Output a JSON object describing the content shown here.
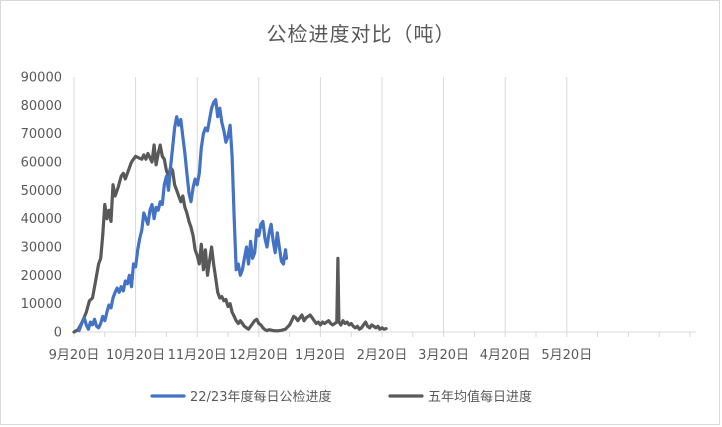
{
  "chart_data": {
    "type": "line",
    "title": "公检进度对比（吨）",
    "ylim": [
      0,
      90000
    ],
    "y_ticks": [
      "0",
      "10000",
      "20000",
      "30000",
      "40000",
      "50000",
      "60000",
      "70000",
      "80000",
      "90000"
    ],
    "x_ticks": [
      "9月20日",
      "10月20日",
      "11月20日",
      "12月20日",
      "1月20日",
      "2月20日",
      "3月20日",
      "4月20日",
      "5月20日"
    ],
    "legend_position": "bottom",
    "grid": "vertical",
    "series": [
      {
        "name": "22/23年度每日公检进度",
        "color": "#4472C4",
        "points": [
          [
            5,
            500
          ],
          [
            8,
            3500
          ],
          [
            10,
            5000
          ],
          [
            12,
            2500
          ],
          [
            14,
            1000
          ],
          [
            16,
            3500
          ],
          [
            18,
            2500
          ],
          [
            20,
            4500
          ],
          [
            22,
            2000
          ],
          [
            24,
            1500
          ],
          [
            26,
            3000
          ],
          [
            28,
            5500
          ],
          [
            30,
            4000
          ],
          [
            32,
            7000
          ],
          [
            34,
            9500
          ],
          [
            36,
            8500
          ],
          [
            38,
            12000
          ],
          [
            40,
            14000
          ],
          [
            42,
            15500
          ],
          [
            44,
            14000
          ],
          [
            46,
            16000
          ],
          [
            48,
            14500
          ],
          [
            50,
            18000
          ],
          [
            52,
            17000
          ],
          [
            54,
            20000
          ],
          [
            56,
            16000
          ],
          [
            58,
            24000
          ],
          [
            60,
            23000
          ],
          [
            62,
            29000
          ],
          [
            64,
            33000
          ],
          [
            66,
            36000
          ],
          [
            68,
            42000
          ],
          [
            70,
            40000
          ],
          [
            72,
            38000
          ],
          [
            74,
            43000
          ],
          [
            76,
            45000
          ],
          [
            78,
            40000
          ],
          [
            80,
            44000
          ],
          [
            82,
            43000
          ],
          [
            84,
            46000
          ],
          [
            86,
            45000
          ],
          [
            88,
            52000
          ],
          [
            90,
            55000
          ],
          [
            92,
            50000
          ],
          [
            94,
            58000
          ],
          [
            96,
            65000
          ],
          [
            98,
            72000
          ],
          [
            100,
            76000
          ],
          [
            102,
            73000
          ],
          [
            104,
            75000
          ],
          [
            106,
            69000
          ],
          [
            108,
            63000
          ],
          [
            110,
            56000
          ],
          [
            112,
            49000
          ],
          [
            114,
            46000
          ],
          [
            116,
            51000
          ],
          [
            118,
            54000
          ],
          [
            120,
            52000
          ],
          [
            122,
            56000
          ],
          [
            124,
            65000
          ],
          [
            126,
            70000
          ],
          [
            128,
            72000
          ],
          [
            130,
            71000
          ],
          [
            132,
            75000
          ],
          [
            134,
            79000
          ],
          [
            136,
            81000
          ],
          [
            138,
            82000
          ],
          [
            140,
            76000
          ],
          [
            142,
            79000
          ],
          [
            144,
            74000
          ],
          [
            146,
            71000
          ],
          [
            148,
            67000
          ],
          [
            150,
            69000
          ],
          [
            152,
            73000
          ],
          [
            154,
            62000
          ],
          [
            156,
            40000
          ],
          [
            158,
            22000
          ],
          [
            160,
            24000
          ],
          [
            162,
            20000
          ],
          [
            164,
            22000
          ],
          [
            166,
            26000
          ],
          [
            168,
            30000
          ],
          [
            170,
            24000
          ],
          [
            172,
            32000
          ],
          [
            174,
            26000
          ],
          [
            176,
            28000
          ],
          [
            178,
            36000
          ],
          [
            180,
            34000
          ],
          [
            182,
            38000
          ],
          [
            184,
            39000
          ],
          [
            186,
            33000
          ],
          [
            188,
            30000
          ],
          [
            190,
            35000
          ],
          [
            192,
            38000
          ],
          [
            194,
            32000
          ],
          [
            196,
            28000
          ],
          [
            198,
            35000
          ],
          [
            200,
            30000
          ],
          [
            202,
            25000
          ],
          [
            204,
            24000
          ],
          [
            206,
            29000
          ],
          [
            207,
            26000
          ]
        ]
      },
      {
        "name": "五年均值每日进度",
        "color": "#595959",
        "points": [
          [
            0,
            0
          ],
          [
            4,
            800
          ],
          [
            8,
            3500
          ],
          [
            12,
            7000
          ],
          [
            15,
            11000
          ],
          [
            18,
            12000
          ],
          [
            21,
            18000
          ],
          [
            24,
            24000
          ],
          [
            26,
            26000
          ],
          [
            28,
            34000
          ],
          [
            30,
            45000
          ],
          [
            32,
            40000
          ],
          [
            34,
            43000
          ],
          [
            36,
            39000
          ],
          [
            38,
            52000
          ],
          [
            40,
            48000
          ],
          [
            43,
            51000
          ],
          [
            46,
            55000
          ],
          [
            48,
            56000
          ],
          [
            50,
            54000
          ],
          [
            53,
            57000
          ],
          [
            56,
            60000
          ],
          [
            58,
            61000
          ],
          [
            60,
            62000
          ],
          [
            63,
            61500
          ],
          [
            66,
            61000
          ],
          [
            68,
            62500
          ],
          [
            70,
            61000
          ],
          [
            72,
            63000
          ],
          [
            74,
            61500
          ],
          [
            76,
            60000
          ],
          [
            78,
            66000
          ],
          [
            80,
            59000
          ],
          [
            82,
            63000
          ],
          [
            84,
            66000
          ],
          [
            86,
            62000
          ],
          [
            88,
            61000
          ],
          [
            90,
            57000
          ],
          [
            92,
            55000
          ],
          [
            94,
            58000
          ],
          [
            96,
            57000
          ],
          [
            98,
            52000
          ],
          [
            100,
            50000
          ],
          [
            102,
            48000
          ],
          [
            104,
            46000
          ],
          [
            106,
            48000
          ],
          [
            108,
            44000
          ],
          [
            110,
            42000
          ],
          [
            112,
            39000
          ],
          [
            114,
            37000
          ],
          [
            116,
            34000
          ],
          [
            118,
            29000
          ],
          [
            120,
            27000
          ],
          [
            122,
            24000
          ],
          [
            124,
            31000
          ],
          [
            126,
            22000
          ],
          [
            128,
            29000
          ],
          [
            130,
            20000
          ],
          [
            132,
            25000
          ],
          [
            134,
            30000
          ],
          [
            136,
            24000
          ],
          [
            138,
            19000
          ],
          [
            140,
            14000
          ],
          [
            142,
            12000
          ],
          [
            144,
            12500
          ],
          [
            146,
            11000
          ],
          [
            148,
            11500
          ],
          [
            150,
            9000
          ],
          [
            152,
            10000
          ],
          [
            154,
            7000
          ],
          [
            156,
            5500
          ],
          [
            158,
            4000
          ],
          [
            160,
            3000
          ],
          [
            162,
            4000
          ],
          [
            164,
            3000
          ],
          [
            166,
            2000
          ],
          [
            168,
            1500
          ],
          [
            170,
            1000
          ],
          [
            172,
            2000
          ],
          [
            174,
            3000
          ],
          [
            176,
            4000
          ],
          [
            178,
            4500
          ],
          [
            180,
            3000
          ],
          [
            182,
            2500
          ],
          [
            184,
            1500
          ],
          [
            186,
            800
          ],
          [
            188,
            500
          ],
          [
            190,
            800
          ],
          [
            194,
            500
          ],
          [
            198,
            400
          ],
          [
            202,
            600
          ],
          [
            206,
            1000
          ],
          [
            210,
            2500
          ],
          [
            212,
            4000
          ],
          [
            214,
            5500
          ],
          [
            216,
            5000
          ],
          [
            218,
            4000
          ],
          [
            220,
            5000
          ],
          [
            222,
            6000
          ],
          [
            224,
            4000
          ],
          [
            226,
            5000
          ],
          [
            228,
            5500
          ],
          [
            230,
            6000
          ],
          [
            232,
            5000
          ],
          [
            234,
            4000
          ],
          [
            236,
            3000
          ],
          [
            238,
            3500
          ],
          [
            240,
            2500
          ],
          [
            242,
            3500
          ],
          [
            244,
            3000
          ],
          [
            246,
            3500
          ],
          [
            248,
            4000
          ],
          [
            250,
            3000
          ],
          [
            252,
            2500
          ],
          [
            254,
            3000
          ],
          [
            256,
            3500
          ],
          [
            257,
            26000
          ],
          [
            258,
            3500
          ],
          [
            260,
            2500
          ],
          [
            262,
            4000
          ],
          [
            264,
            3000
          ],
          [
            266,
            3500
          ],
          [
            268,
            2500
          ],
          [
            270,
            3000
          ],
          [
            272,
            2000
          ],
          [
            274,
            1500
          ],
          [
            276,
            2000
          ],
          [
            278,
            1000
          ],
          [
            280,
            1500
          ],
          [
            282,
            2500
          ],
          [
            284,
            3500
          ],
          [
            286,
            2000
          ],
          [
            288,
            1500
          ],
          [
            290,
            2500
          ],
          [
            292,
            2000
          ],
          [
            294,
            1500
          ],
          [
            296,
            2000
          ],
          [
            298,
            1000
          ],
          [
            300,
            1500
          ],
          [
            302,
            1000
          ],
          [
            304,
            1200
          ]
        ]
      }
    ]
  }
}
